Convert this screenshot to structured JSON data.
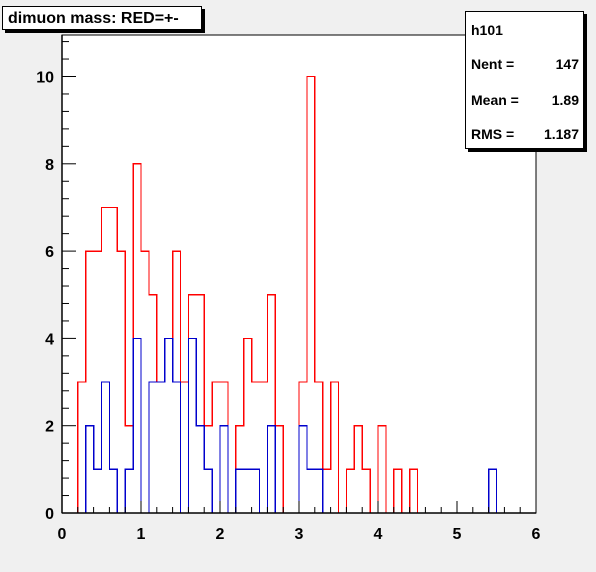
{
  "title": "dimuon mass: RED=+-",
  "stats": {
    "name": "h101",
    "entries_label": "Nent =",
    "entries_value": "147",
    "mean_label": "Mean =",
    "mean_value": "1.89",
    "rms_label": "RMS =",
    "rms_value": "1.187"
  },
  "chart_data": {
    "type": "histogram",
    "title": "dimuon mass: RED=+-",
    "xlim": [
      0,
      6
    ],
    "ylim": [
      0,
      11
    ],
    "xticks": [
      "0",
      "1",
      "2",
      "3",
      "4",
      "5",
      "6"
    ],
    "yticks": [
      "0",
      "2",
      "4",
      "6",
      "8",
      "10"
    ],
    "bin_width": 0.1,
    "bin_start": 0,
    "series": [
      {
        "color": "#ff0000",
        "values": [
          0,
          0,
          3,
          6,
          6,
          7,
          7,
          6,
          2,
          8,
          6,
          5,
          3,
          4,
          6,
          3,
          5,
          5,
          2,
          3,
          3,
          0,
          2,
          4,
          3,
          3,
          5,
          2,
          0,
          0,
          3,
          10,
          3,
          1,
          3,
          0,
          1,
          2,
          1,
          0,
          2,
          0,
          1,
          0,
          1,
          0,
          0,
          0,
          0,
          0,
          0,
          0,
          0,
          0,
          0,
          0,
          0,
          0,
          0,
          0
        ]
      },
      {
        "color": "#0000cc",
        "values": [
          0,
          0,
          0,
          2,
          1,
          3,
          1,
          0,
          1,
          4,
          0,
          3,
          3,
          4,
          3,
          0,
          4,
          2,
          1,
          0,
          2,
          0,
          1,
          1,
          1,
          0,
          2,
          0,
          0,
          0,
          2,
          1,
          1,
          0,
          0,
          0,
          0,
          0,
          0,
          0,
          0,
          0,
          0,
          0,
          0,
          0,
          0,
          0,
          0,
          0,
          0,
          0,
          0,
          0,
          1,
          0,
          0,
          0,
          0,
          0
        ]
      }
    ],
    "grid": false
  },
  "colors": {
    "frame_background": "#f0f0f0",
    "pad_background": "#ffffff",
    "axis": "#000000"
  }
}
